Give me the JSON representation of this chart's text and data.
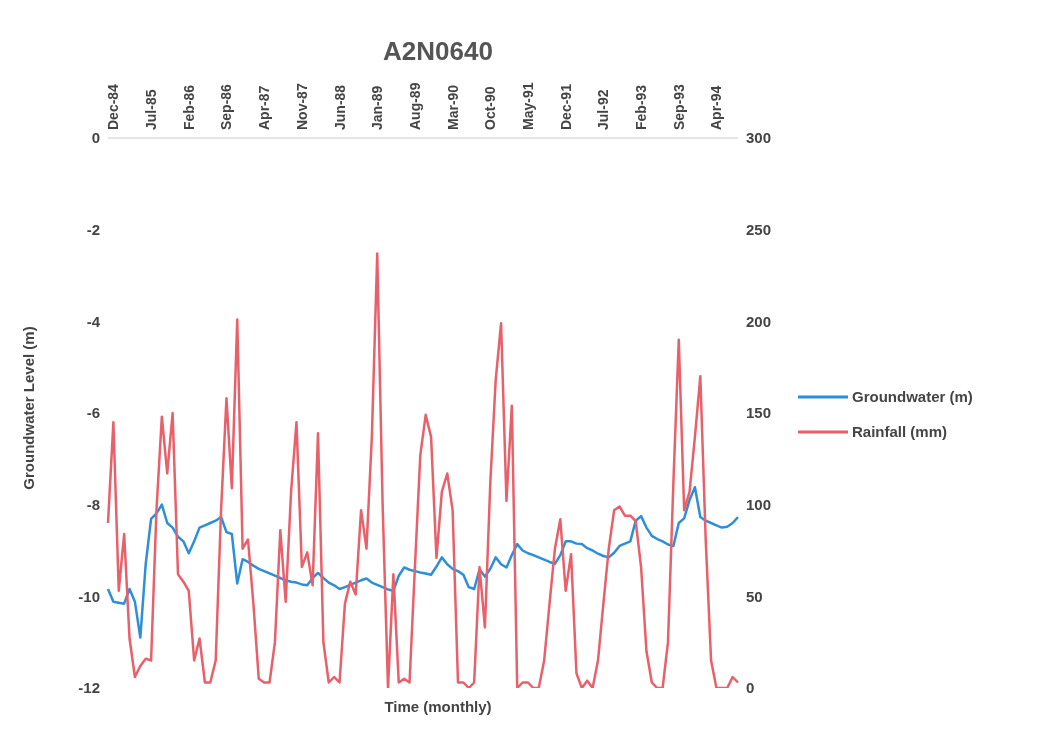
{
  "chart_data": {
    "type": "line",
    "title": "A2N0640",
    "xlabel": "Time (monthly)",
    "ylabel": "Groundwater Level (m)",
    "categories": [
      null,
      "Dec-84",
      null,
      null,
      null,
      null,
      null,
      null,
      "Jul-85",
      null,
      null,
      null,
      null,
      null,
      null,
      "Feb-86",
      null,
      null,
      null,
      null,
      null,
      null,
      "Sep-86",
      null,
      null,
      null,
      null,
      null,
      null,
      "Apr-87",
      null,
      null,
      null,
      null,
      null,
      null,
      "Nov-87",
      null,
      null,
      null,
      null,
      null,
      null,
      "Jun-88",
      null,
      null,
      null,
      null,
      null,
      null,
      "Jan-89",
      null,
      null,
      null,
      null,
      null,
      null,
      "Aug-89",
      null,
      null,
      null,
      null,
      null,
      null,
      "Mar-90",
      null,
      null,
      null,
      null,
      null,
      null,
      "Oct-90",
      null,
      null,
      null,
      null,
      null,
      null,
      "May-91",
      null,
      null,
      null,
      null,
      null,
      null,
      "Dec-91",
      null,
      null,
      null,
      null,
      null,
      null,
      "Jul-92",
      null,
      null,
      null,
      null,
      null,
      null,
      "Feb-93",
      null,
      null,
      null,
      null,
      null,
      null,
      "Sep-93",
      null,
      null,
      null,
      null,
      null,
      null,
      "Apr-94",
      null,
      null,
      null,
      null
    ],
    "series": [
      {
        "name": "Groundwater (m)",
        "color": "#2e8fd6",
        "axis": "y",
        "values": [
          -9.84,
          -10.12,
          -10.14,
          -10.16,
          -9.84,
          -10.12,
          -10.9,
          -9.3,
          -8.31,
          -8.19,
          -8.0,
          -8.4,
          -8.5,
          -8.7,
          -8.8,
          -9.06,
          -8.8,
          -8.5,
          -8.45,
          -8.4,
          -8.35,
          -8.27,
          -8.6,
          -8.64,
          -9.72,
          -9.19,
          -9.25,
          -9.33,
          -9.4,
          -9.45,
          -9.5,
          -9.55,
          -9.6,
          -9.65,
          -9.68,
          -9.7,
          -9.74,
          -9.76,
          -9.6,
          -9.49,
          -9.6,
          -9.7,
          -9.76,
          -9.84,
          -9.8,
          -9.75,
          -9.7,
          -9.65,
          -9.61,
          -9.7,
          -9.75,
          -9.8,
          -9.85,
          -9.88,
          -9.55,
          -9.37,
          -9.42,
          -9.45,
          -9.48,
          -9.5,
          -9.53,
          -9.35,
          -9.15,
          -9.3,
          -9.4,
          -9.45,
          -9.53,
          -9.8,
          -9.84,
          -9.41,
          -9.57,
          -9.4,
          -9.15,
          -9.3,
          -9.37,
          -9.1,
          -8.86,
          -9.0,
          -9.06,
          -9.1,
          -9.15,
          -9.2,
          -9.25,
          -9.29,
          -9.1,
          -8.8,
          -8.8,
          -8.85,
          -8.86,
          -8.95,
          -9.0,
          -9.07,
          -9.12,
          -9.15,
          -9.05,
          -8.9,
          -8.85,
          -8.8,
          -8.35,
          -8.25,
          -8.5,
          -8.68,
          -8.75,
          -8.8,
          -8.87,
          -8.9,
          -8.4,
          -8.3,
          -7.9,
          -7.62,
          -8.27,
          -8.35,
          -8.4,
          -8.45,
          -8.5,
          -8.48,
          -8.4,
          -8.27
        ]
      },
      {
        "name": "Rainfall (mm)",
        "color": "#e8606a",
        "axis": "y2",
        "values": [
          90,
          145,
          53,
          84,
          27,
          6,
          12,
          16,
          15,
          97,
          148,
          117,
          150,
          62,
          58,
          53,
          15,
          27,
          3,
          3,
          15,
          97,
          158,
          109,
          201,
          76,
          81,
          46,
          5,
          3,
          3,
          25,
          86,
          47,
          107,
          145,
          66,
          74,
          56,
          139,
          25,
          3,
          6,
          3,
          46,
          58,
          51,
          97,
          76,
          137,
          237,
          100,
          0,
          62,
          3,
          5,
          3,
          66,
          127,
          149,
          137,
          71,
          107,
          117,
          97,
          3,
          3,
          0,
          3,
          66,
          33,
          112,
          168,
          199,
          102,
          154,
          0,
          3,
          3,
          0,
          0,
          15,
          46,
          76,
          92,
          53,
          73,
          8,
          0,
          4,
          0,
          15,
          46,
          76,
          97,
          99,
          94,
          94,
          91,
          66,
          20,
          3,
          0,
          0,
          25,
          112,
          190,
          97,
          107,
          137,
          170,
          81,
          15,
          0,
          0,
          0,
          6,
          3
        ]
      }
    ],
    "ylim": [
      -12,
      0
    ],
    "yticks": [
      -12,
      -10,
      -8,
      -6,
      -4,
      -2,
      0
    ],
    "y2lim": [
      0,
      300
    ],
    "y2ticks": [
      0,
      50,
      100,
      150,
      200,
      250,
      300
    ],
    "legend": "right",
    "grid": false,
    "marker": "none",
    "line_style": "solid"
  }
}
